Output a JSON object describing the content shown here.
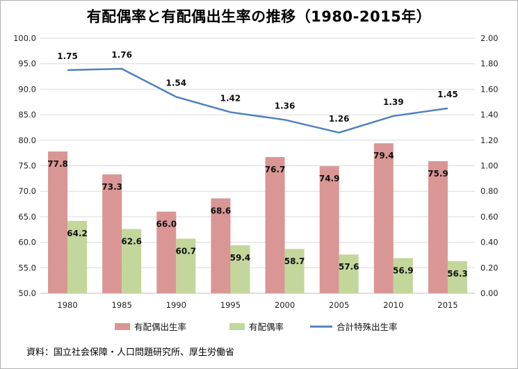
{
  "title": "有配偶率と有配偶出生率の推移（1980-2015年）",
  "source": "資料：国立社会保障・人口問題研究所、厚生労働省",
  "chart_data": {
    "type": "bar",
    "title": "有配偶率と有配偶出生率の推移（1980-2015年）",
    "categories": [
      "1980",
      "1985",
      "1990",
      "1995",
      "2000",
      "2005",
      "2010",
      "2015"
    ],
    "series": [
      {
        "name": "有配偶出生率",
        "type": "bar",
        "axis": "left",
        "color": "#d99694",
        "values": [
          77.8,
          73.3,
          66.0,
          68.6,
          76.7,
          74.9,
          79.4,
          75.9
        ]
      },
      {
        "name": "有配偶率",
        "type": "bar",
        "axis": "left",
        "color": "#c3d69b",
        "values": [
          64.2,
          62.6,
          60.7,
          59.4,
          58.7,
          57.6,
          56.9,
          56.3
        ]
      },
      {
        "name": "合計特殊出生率",
        "type": "line",
        "axis": "right",
        "color": "#4f81bd",
        "values": [
          1.75,
          1.76,
          1.54,
          1.42,
          1.36,
          1.26,
          1.39,
          1.45
        ]
      }
    ],
    "y_left": {
      "min": 50,
      "max": 100,
      "step": 5,
      "ticks": [
        "50.0",
        "55.0",
        "60.0",
        "65.0",
        "70.0",
        "75.0",
        "80.0",
        "85.0",
        "90.0",
        "95.0",
        "100.0"
      ]
    },
    "y_right": {
      "min": 0,
      "max": 2,
      "step": 0.2,
      "ticks": [
        "0.00",
        "0.20",
        "0.40",
        "0.60",
        "0.80",
        "1.00",
        "1.20",
        "1.40",
        "1.60",
        "1.80",
        "2.00"
      ]
    },
    "grid": true,
    "legend": "bottom"
  }
}
